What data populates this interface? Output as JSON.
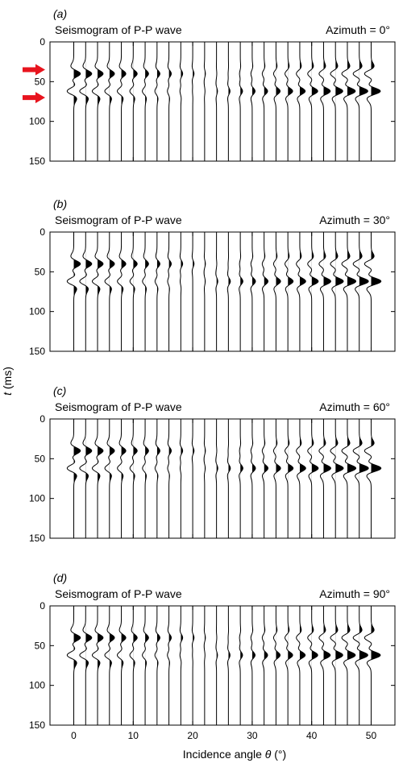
{
  "figure": {
    "y_axis_label_italic": "t",
    "y_axis_label_rest": " (ms)",
    "x_axis_label_prefix": "Incidence angle ",
    "x_axis_label_symbol": "θ",
    "x_axis_label_suffix": " (°)",
    "trace_color": "#000000",
    "arrow_color": "#e8141e",
    "arrow_icon": "right-arrow-icon"
  },
  "chart_data": [
    {
      "type": "seismogram",
      "panel_label": "(a)",
      "title": "Seismogram of P-P wave",
      "annotation": "Azimuth = 0°",
      "x_ticks": [
        0,
        10,
        20,
        30,
        40,
        50
      ],
      "y_ticks": [
        0,
        50,
        100,
        150
      ],
      "xlim": [
        -4,
        54
      ],
      "ylim": [
        0,
        150
      ],
      "y_reversed": true,
      "trace_angles": [
        0,
        2,
        4,
        6,
        8,
        10,
        12,
        14,
        16,
        18,
        20,
        22,
        24,
        26,
        28,
        30,
        32,
        34,
        36,
        38,
        40,
        42,
        44,
        46,
        48,
        50
      ],
      "events": [
        {
          "time_ms": 40,
          "amp_at_angle_0": 1.0,
          "amp_at_angle_50": -1.0
        },
        {
          "time_ms": 62,
          "amp_at_angle_0": -1.0,
          "amp_at_angle_50": 1.4
        }
      ],
      "arrow_times_ms": [
        35,
        70
      ]
    },
    {
      "type": "seismogram",
      "panel_label": "(b)",
      "title": "Seismogram of P-P wave",
      "annotation": "Azimuth = 30°",
      "x_ticks": [
        0,
        10,
        20,
        30,
        40,
        50
      ],
      "y_ticks": [
        0,
        50,
        100,
        150
      ],
      "xlim": [
        -4,
        54
      ],
      "ylim": [
        0,
        150
      ],
      "y_reversed": true,
      "trace_angles": [
        0,
        2,
        4,
        6,
        8,
        10,
        12,
        14,
        16,
        18,
        20,
        22,
        24,
        26,
        28,
        30,
        32,
        34,
        36,
        38,
        40,
        42,
        44,
        46,
        48,
        50
      ],
      "events": [
        {
          "time_ms": 40,
          "amp_at_angle_0": 1.0,
          "amp_at_angle_50": -1.0
        },
        {
          "time_ms": 62,
          "amp_at_angle_0": -1.0,
          "amp_at_angle_50": 1.5
        }
      ],
      "arrow_times_ms": []
    },
    {
      "type": "seismogram",
      "panel_label": "(c)",
      "title": "Seismogram of P-P wave",
      "annotation": "Azimuth = 60°",
      "x_ticks": [
        0,
        10,
        20,
        30,
        40,
        50
      ],
      "y_ticks": [
        0,
        50,
        100,
        150
      ],
      "xlim": [
        -4,
        54
      ],
      "ylim": [
        0,
        150
      ],
      "y_reversed": true,
      "trace_angles": [
        0,
        2,
        4,
        6,
        8,
        10,
        12,
        14,
        16,
        18,
        20,
        22,
        24,
        26,
        28,
        30,
        32,
        34,
        36,
        38,
        40,
        42,
        44,
        46,
        48,
        50
      ],
      "events": [
        {
          "time_ms": 40,
          "amp_at_angle_0": 1.0,
          "amp_at_angle_50": -1.0
        },
        {
          "time_ms": 62,
          "amp_at_angle_0": -1.0,
          "amp_at_angle_50": 1.5
        }
      ],
      "arrow_times_ms": []
    },
    {
      "type": "seismogram",
      "panel_label": "(d)",
      "title": "Seismogram of P-P wave",
      "annotation": "Azimuth = 90°",
      "x_ticks": [
        0,
        10,
        20,
        30,
        40,
        50
      ],
      "y_ticks": [
        0,
        50,
        100,
        150
      ],
      "xlim": [
        -4,
        54
      ],
      "ylim": [
        0,
        150
      ],
      "y_reversed": true,
      "trace_angles": [
        0,
        2,
        4,
        6,
        8,
        10,
        12,
        14,
        16,
        18,
        20,
        22,
        24,
        26,
        28,
        30,
        32,
        34,
        36,
        38,
        40,
        42,
        44,
        46,
        48,
        50
      ],
      "events": [
        {
          "time_ms": 40,
          "amp_at_angle_0": 1.0,
          "amp_at_angle_50": -1.0
        },
        {
          "time_ms": 62,
          "amp_at_angle_0": -1.0,
          "amp_at_angle_50": 1.4
        }
      ],
      "arrow_times_ms": []
    }
  ]
}
